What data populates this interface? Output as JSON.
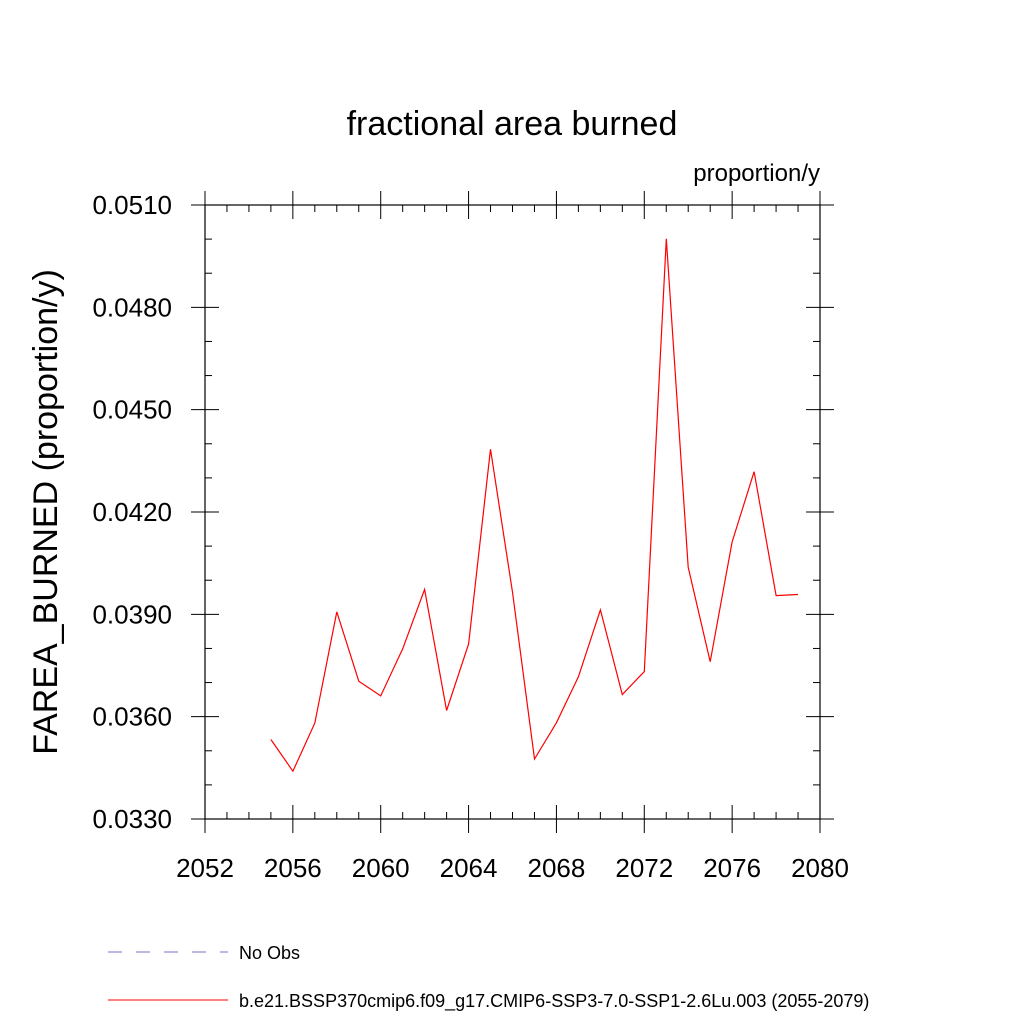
{
  "chart_data": {
    "type": "line",
    "title": "fractional area burned",
    "units_label": "proportion/y",
    "ylabel": "FAREA_BURNED  (proportion/y)",
    "xlabel": "",
    "xlim": [
      2052,
      2080
    ],
    "ylim": [
      0.033,
      0.051
    ],
    "x_ticks": [
      2052,
      2056,
      2060,
      2064,
      2068,
      2072,
      2076,
      2080
    ],
    "x_tick_labels": [
      "2052",
      "2056",
      "2060",
      "2064",
      "2068",
      "2072",
      "2076",
      "2080"
    ],
    "y_ticks": [
      0.033,
      0.036,
      0.039,
      0.042,
      0.045,
      0.048,
      0.051
    ],
    "y_tick_labels": [
      "0.0330",
      "0.0360",
      "0.0390",
      "0.0420",
      "0.0450",
      "0.0480",
      "0.0510"
    ],
    "grid": false,
    "legend_position": "bottom-left",
    "series": [
      {
        "name": "b.e21.BSSP370cmip6.f09_g17.CMIP6-SSP3-7.0-SSP1-2.6Lu.003 (2055-2079)",
        "color": "#ff0000",
        "style": "solid",
        "x": [
          2055,
          2056,
          2057,
          2058,
          2059,
          2060,
          2061,
          2062,
          2063,
          2064,
          2065,
          2066,
          2067,
          2068,
          2069,
          2070,
          2071,
          2072,
          2073,
          2074,
          2075,
          2076,
          2077,
          2078,
          2079
        ],
        "y": [
          0.03533,
          0.0344,
          0.03581,
          0.03907,
          0.03704,
          0.03661,
          0.03799,
          0.03973,
          0.03618,
          0.03813,
          0.04384,
          0.03965,
          0.03476,
          0.03582,
          0.03717,
          0.03913,
          0.03665,
          0.03732,
          0.05001,
          0.04038,
          0.03761,
          0.04112,
          0.04318,
          0.03955,
          0.03958
        ]
      }
    ],
    "legend": [
      {
        "label": "No Obs",
        "color": "#7a70c8",
        "style": "dashed"
      },
      {
        "label": "b.e21.BSSP370cmip6.f09_g17.CMIP6-SSP3-7.0-SSP1-2.6Lu.003 (2055-2079)",
        "color": "#ff0000",
        "style": "solid"
      }
    ]
  }
}
